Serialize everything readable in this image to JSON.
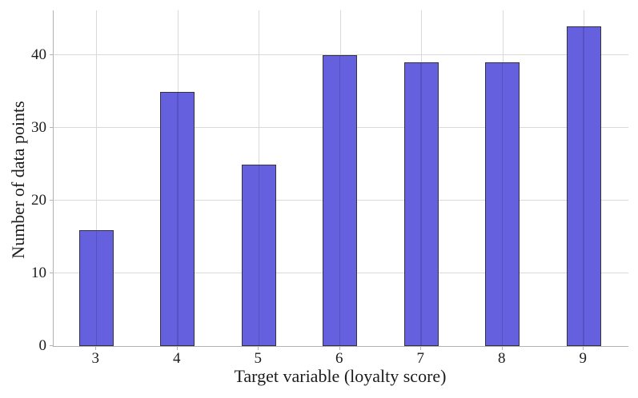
{
  "chart_data": {
    "type": "bar",
    "title": "",
    "xlabel": "Target variable (loyalty score)",
    "ylabel": "Number of data points",
    "categories": [
      "3",
      "4",
      "5",
      "6",
      "7",
      "8",
      "9"
    ],
    "values": [
      16,
      35,
      25,
      40,
      39,
      39,
      44
    ],
    "yticks": [
      0,
      10,
      20,
      30,
      40
    ],
    "ylim": [
      0,
      46.2
    ],
    "grid": true,
    "legend": "none",
    "colors": {
      "bar_fill": "#6460DE",
      "bar_edge": "#34323F",
      "grid_line": "#d9d9d9",
      "axis_spine": "#b2b2b2",
      "text": "#1c1c1c",
      "background": "#ffffff"
    }
  }
}
